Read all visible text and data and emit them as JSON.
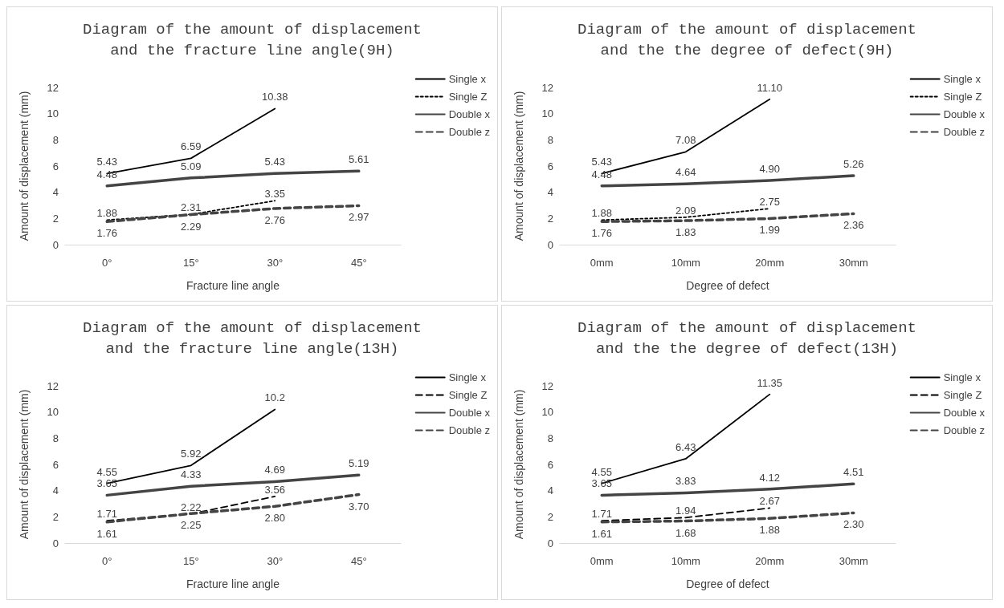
{
  "chart_data": [
    {
      "type": "line",
      "title": "Diagram of the amount of displacement\nand the fracture line angle(9H)",
      "xlabel": "Fracture line angle",
      "ylabel": "Amount of displacement (mm)",
      "categories": [
        "0°",
        "15°",
        "30°",
        "45°"
      ],
      "ylim": [
        0,
        12
      ],
      "yticks": [
        0,
        2,
        4,
        6,
        8,
        10,
        12
      ],
      "grid": false,
      "legend": "right",
      "marker": "none",
      "data_labels": true,
      "series": [
        {
          "name": "Single x",
          "color": "#000000",
          "line_style": "solid",
          "values": [
            5.43,
            6.59,
            10.38,
            null
          ]
        },
        {
          "name": "Single Z",
          "color": "#000000",
          "line_style": "dotted",
          "values": [
            1.88,
            2.31,
            3.35,
            null
          ]
        },
        {
          "name": "Double x",
          "color": "#444444",
          "line_style": "solid",
          "values": [
            4.48,
            5.09,
            5.43,
            5.61
          ]
        },
        {
          "name": "Double z",
          "color": "#444444",
          "line_style": "dashed",
          "values": [
            1.76,
            2.29,
            2.76,
            2.97
          ]
        }
      ]
    },
    {
      "type": "line",
      "title": "Diagram of the amount of displacement\nand the the degree of defect(9H)",
      "xlabel": "Degree of defect",
      "ylabel": "Amount of displacement (mm)",
      "categories": [
        "0mm",
        "10mm",
        "20mm",
        "30mm"
      ],
      "ylim": [
        0,
        12
      ],
      "yticks": [
        0,
        2,
        4,
        6,
        8,
        10,
        12
      ],
      "grid": false,
      "legend": "right",
      "marker": "none",
      "data_labels": true,
      "series": [
        {
          "name": "Single x",
          "color": "#000000",
          "line_style": "solid",
          "values": [
            5.43,
            7.08,
            11.1,
            null
          ],
          "value_labels": [
            "5.43",
            "7.08",
            "11.10",
            null
          ]
        },
        {
          "name": "Single Z",
          "color": "#000000",
          "line_style": "dotted",
          "values": [
            1.88,
            2.09,
            2.75,
            null
          ]
        },
        {
          "name": "Double x",
          "color": "#444444",
          "line_style": "solid",
          "values": [
            4.48,
            4.64,
            4.9,
            5.26
          ],
          "value_labels": [
            "4.48",
            "4.64",
            "4.90",
            "5.26"
          ]
        },
        {
          "name": "Double z",
          "color": "#444444",
          "line_style": "dashed",
          "values": [
            1.76,
            1.83,
            1.99,
            2.36
          ]
        }
      ]
    },
    {
      "type": "line",
      "title": "Diagram of the amount of displacement\nand the fracture line angle(13H)",
      "xlabel": "Fracture line angle",
      "ylabel": "Amount of displacement (mm)",
      "categories": [
        "0°",
        "15°",
        "30°",
        "45°"
      ],
      "ylim": [
        0,
        12
      ],
      "yticks": [
        0,
        2,
        4,
        6,
        8,
        10,
        12
      ],
      "grid": false,
      "legend": "right",
      "marker": "none",
      "data_labels": true,
      "series": [
        {
          "name": "Single x",
          "color": "#000000",
          "line_style": "solid",
          "values": [
            4.55,
            5.92,
            10.2,
            null
          ]
        },
        {
          "name": "Single Z",
          "color": "#000000",
          "line_style": "dashed",
          "values": [
            1.71,
            2.22,
            3.56,
            null
          ]
        },
        {
          "name": "Double x",
          "color": "#444444",
          "line_style": "solid",
          "values": [
            3.65,
            4.33,
            4.69,
            5.19
          ]
        },
        {
          "name": "Double z",
          "color": "#444444",
          "line_style": "dashed",
          "values": [
            1.61,
            2.25,
            2.8,
            3.7
          ],
          "value_labels": [
            "1.61",
            "2.25",
            "2.80",
            "3.70"
          ]
        }
      ]
    },
    {
      "type": "line",
      "title": "Diagram of the amount of displacement\nand the the degree of defect(13H)",
      "xlabel": "Degree of defect",
      "ylabel": "Amount of displacement (mm)",
      "categories": [
        "0mm",
        "10mm",
        "20mm",
        "30mm"
      ],
      "ylim": [
        0,
        12
      ],
      "yticks": [
        0,
        2,
        4,
        6,
        8,
        10,
        12
      ],
      "grid": false,
      "legend": "right",
      "marker": "none",
      "data_labels": true,
      "series": [
        {
          "name": "Single x",
          "color": "#000000",
          "line_style": "solid",
          "values": [
            4.55,
            6.43,
            11.35,
            null
          ]
        },
        {
          "name": "Single Z",
          "color": "#000000",
          "line_style": "dashed",
          "values": [
            1.71,
            1.94,
            2.67,
            null
          ]
        },
        {
          "name": "Double x",
          "color": "#444444",
          "line_style": "solid",
          "values": [
            3.65,
            3.83,
            4.12,
            4.51
          ]
        },
        {
          "name": "Double z",
          "color": "#444444",
          "line_style": "dashed",
          "values": [
            1.61,
            1.68,
            1.88,
            2.3
          ],
          "value_labels": [
            "1.61",
            "1.68",
            "1.88",
            "2.30"
          ]
        }
      ]
    }
  ]
}
